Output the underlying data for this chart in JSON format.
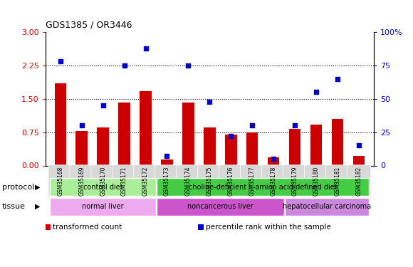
{
  "title": "GDS1385 / OR3446",
  "samples": [
    "GSM35168",
    "GSM35169",
    "GSM35170",
    "GSM35171",
    "GSM35172",
    "GSM35173",
    "GSM35174",
    "GSM35175",
    "GSM35176",
    "GSM35177",
    "GSM35178",
    "GSM35179",
    "GSM35180",
    "GSM35181",
    "GSM35182"
  ],
  "transformed_count": [
    1.85,
    0.78,
    0.85,
    1.42,
    1.68,
    0.13,
    1.42,
    0.85,
    0.7,
    0.75,
    0.18,
    0.82,
    0.92,
    1.05,
    0.22
  ],
  "percentile_rank": [
    78,
    30,
    45,
    75,
    88,
    7,
    75,
    48,
    22,
    30,
    5,
    30,
    55,
    65,
    15
  ],
  "bar_color": "#cc0000",
  "dot_color": "#0000cc",
  "ylim_left": [
    0,
    3
  ],
  "ylim_right": [
    0,
    100
  ],
  "yticks_left": [
    0,
    0.75,
    1.5,
    2.25,
    3
  ],
  "yticks_right": [
    0,
    25,
    50,
    75,
    100
  ],
  "hlines": [
    0.75,
    1.5,
    2.25
  ],
  "protocol_groups": [
    {
      "label": "control diet",
      "start": 0,
      "end": 5,
      "color": "#aaee99"
    },
    {
      "label": "choline-deficient L-amino acid defined diet",
      "start": 5,
      "end": 15,
      "color": "#44cc44"
    }
  ],
  "tissue_groups": [
    {
      "label": "normal liver",
      "start": 0,
      "end": 5,
      "color": "#eeaaee"
    },
    {
      "label": "noncancerous liver",
      "start": 5,
      "end": 11,
      "color": "#cc55cc"
    },
    {
      "label": "hepatocellular carcinoma",
      "start": 11,
      "end": 15,
      "color": "#cc88dd"
    }
  ],
  "legend_items": [
    {
      "label": "transformed count",
      "color": "#cc0000"
    },
    {
      "label": "percentile rank within the sample",
      "color": "#0000cc"
    }
  ],
  "protocol_label": "protocol",
  "tissue_label": "tissue",
  "bar_width": 0.55,
  "plot_bg": "#ffffff",
  "fig_bg": "#ffffff",
  "xtick_bg": "#d8d8d8",
  "left_axis_color": "#cc0000",
  "right_axis_color": "#0000cc"
}
